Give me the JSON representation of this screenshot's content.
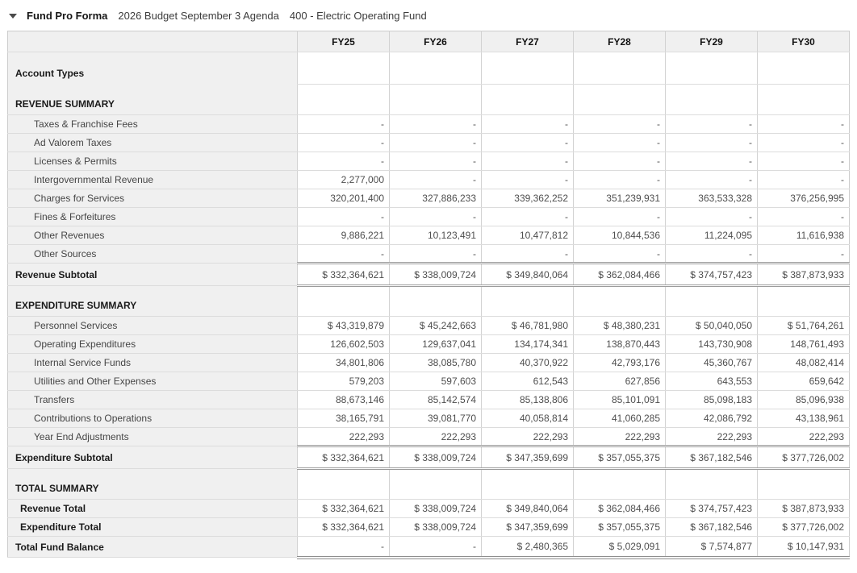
{
  "header": {
    "collapse_icon": "triangle-down-icon",
    "title": "Fund Pro Forma",
    "budget_name": "2026 Budget September 3 Agenda",
    "fund_name": "400 - Electric Operating Fund"
  },
  "table": {
    "columns": [
      "FY25",
      "FY26",
      "FY27",
      "FY28",
      "FY29",
      "FY30"
    ],
    "rows": [
      {
        "type": "account",
        "label": "Account Types",
        "values": [
          "",
          "",
          "",
          "",
          "",
          ""
        ]
      },
      {
        "type": "section",
        "label": "REVENUE SUMMARY",
        "values": [
          "",
          "",
          "",
          "",
          "",
          ""
        ]
      },
      {
        "type": "detail",
        "label": "Taxes & Franchise Fees",
        "values": [
          "-",
          "-",
          "-",
          "-",
          "-",
          "-"
        ]
      },
      {
        "type": "detail",
        "label": "Ad Valorem Taxes",
        "values": [
          "-",
          "-",
          "-",
          "-",
          "-",
          "-"
        ]
      },
      {
        "type": "detail",
        "label": "Licenses & Permits",
        "values": [
          "-",
          "-",
          "-",
          "-",
          "-",
          "-"
        ]
      },
      {
        "type": "detail",
        "label": "Intergovernmental Revenue",
        "values": [
          "2,277,000",
          "-",
          "-",
          "-",
          "-",
          "-"
        ]
      },
      {
        "type": "detail",
        "label": "Charges for Services",
        "values": [
          "320,201,400",
          "327,886,233",
          "339,362,252",
          "351,239,931",
          "363,533,328",
          "376,256,995"
        ]
      },
      {
        "type": "detail",
        "label": "Fines & Forfeitures",
        "values": [
          "-",
          "-",
          "-",
          "-",
          "-",
          "-"
        ]
      },
      {
        "type": "detail",
        "label": "Other Revenues",
        "values": [
          "9,886,221",
          "10,123,491",
          "10,477,812",
          "10,844,536",
          "11,224,095",
          "11,616,938"
        ]
      },
      {
        "type": "detail",
        "label": "Other Sources",
        "values": [
          "-",
          "-",
          "-",
          "-",
          "-",
          "-"
        ]
      },
      {
        "type": "subtotal",
        "label": "Revenue Subtotal",
        "values": [
          "$ 332,364,621",
          "$ 338,009,724",
          "$ 349,840,064",
          "$ 362,084,466",
          "$ 374,757,423",
          "$ 387,873,933"
        ]
      },
      {
        "type": "section",
        "label": "EXPENDITURE SUMMARY",
        "values": [
          "",
          "",
          "",
          "",
          "",
          ""
        ]
      },
      {
        "type": "detail",
        "label": "Personnel Services",
        "values": [
          "$ 43,319,879",
          "$ 45,242,663",
          "$ 46,781,980",
          "$ 48,380,231",
          "$ 50,040,050",
          "$ 51,764,261"
        ]
      },
      {
        "type": "detail",
        "label": "Operating Expenditures",
        "values": [
          "126,602,503",
          "129,637,041",
          "134,174,341",
          "138,870,443",
          "143,730,908",
          "148,761,493"
        ]
      },
      {
        "type": "detail",
        "label": "Internal Service Funds",
        "values": [
          "34,801,806",
          "38,085,780",
          "40,370,922",
          "42,793,176",
          "45,360,767",
          "48,082,414"
        ]
      },
      {
        "type": "detail",
        "label": "Utilities and Other Expenses",
        "values": [
          "579,203",
          "597,603",
          "612,543",
          "627,856",
          "643,553",
          "659,642"
        ]
      },
      {
        "type": "detail",
        "label": "Transfers",
        "values": [
          "88,673,146",
          "85,142,574",
          "85,138,806",
          "85,101,091",
          "85,098,183",
          "85,096,938"
        ]
      },
      {
        "type": "detail",
        "label": "Contributions to Operations",
        "values": [
          "38,165,791",
          "39,081,770",
          "40,058,814",
          "41,060,285",
          "42,086,792",
          "43,138,961"
        ]
      },
      {
        "type": "detail",
        "label": "Year End Adjustments",
        "values": [
          "222,293",
          "222,293",
          "222,293",
          "222,293",
          "222,293",
          "222,293"
        ]
      },
      {
        "type": "subtotal",
        "label": "Expenditure Subtotal",
        "values": [
          "$ 332,364,621",
          "$ 338,009,724",
          "$ 347,359,699",
          "$ 357,055,375",
          "$ 367,182,546",
          "$ 377,726,002"
        ]
      },
      {
        "type": "section",
        "label": "TOTAL SUMMARY",
        "values": [
          "",
          "",
          "",
          "",
          "",
          ""
        ]
      },
      {
        "type": "total",
        "label": "Revenue Total",
        "values": [
          "$ 332,364,621",
          "$ 338,009,724",
          "$ 349,840,064",
          "$ 362,084,466",
          "$ 374,757,423",
          "$ 387,873,933"
        ]
      },
      {
        "type": "total",
        "label": "Expenditure Total",
        "values": [
          "$ 332,364,621",
          "$ 338,009,724",
          "$ 347,359,699",
          "$ 357,055,375",
          "$ 367,182,546",
          "$ 377,726,002"
        ]
      },
      {
        "type": "balance",
        "label": "Total Fund Balance",
        "values": [
          "-",
          "-",
          "$ 2,480,365",
          "$ 5,029,091",
          "$ 7,574,877",
          "$ 10,147,931"
        ]
      }
    ]
  },
  "colors": {
    "label_column_bg": "#f0f0f0",
    "header_row_bg": "#f0f0f0",
    "grid_line": "#dcdcdc",
    "subtotal_rule": "#9c9c9c",
    "bottom_rule": "#8e8e8e",
    "text_bold": "#1a1a1a",
    "text_value": "#4e4e4e"
  }
}
